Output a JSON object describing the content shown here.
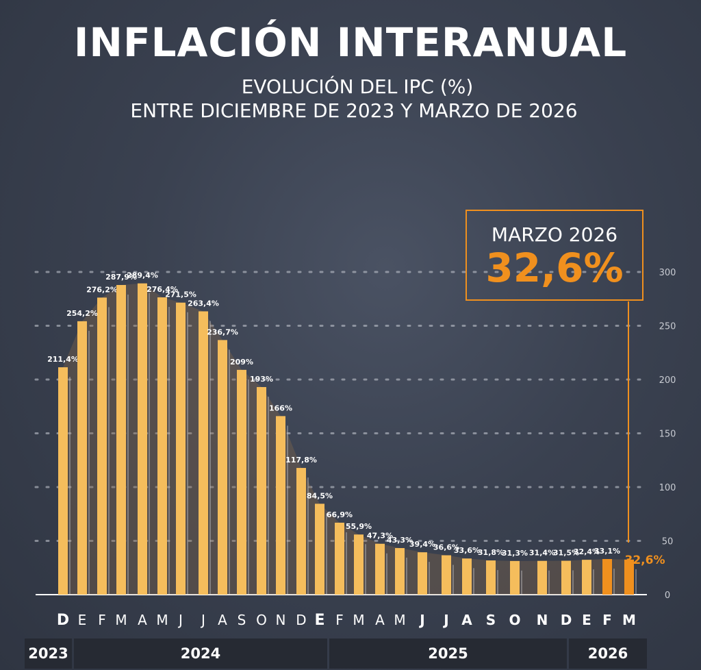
{
  "chart_data": {
    "type": "bar",
    "title": "INFLACIÓN INTERANUAL",
    "subtitle": [
      "EVOLUCIÓN DEL IPC (%)",
      "ENTRE DICIEMBRE DE 2023 Y MARZO DE 2026"
    ],
    "categories": [
      "D",
      "E",
      "F",
      "M",
      "A",
      "M",
      "J",
      "J",
      "A",
      "S",
      "O",
      "N",
      "D",
      "E",
      "F",
      "M",
      "A",
      "M",
      "J",
      "J",
      "A",
      "S",
      "O",
      "N",
      "D",
      "E",
      "F",
      "M"
    ],
    "values": [
      211.4,
      254.2,
      276.2,
      287.9,
      289.4,
      276.4,
      271.5,
      263.4,
      236.7,
      209,
      193,
      166,
      117.8,
      84.5,
      66.9,
      55.9,
      47.3,
      43.3,
      39.4,
      36.6,
      33.6,
      31.8,
      31.3,
      31.4,
      31.5,
      32.4,
      33.1,
      32.6
    ],
    "labels": [
      "211,4%",
      "254,2%",
      "276,2%",
      "287,9%",
      "289,4%",
      "276,4%",
      "271,5%",
      "263,4%",
      "236,7%",
      "209%",
      "193%",
      "166%",
      "117,8%",
      "84,5%",
      "66,9%",
      "55,9%",
      "47,3%",
      "43,3%",
      "39,4%",
      "36,6%",
      "33,6%",
      "31,8%",
      "31,3%",
      "31,4%",
      "31,5%",
      "32,4%",
      "33,1%",
      "32,6%"
    ],
    "years": [
      {
        "label": "2023",
        "span": 1
      },
      {
        "label": "2024",
        "span": 12
      },
      {
        "label": "2025",
        "span": 12
      },
      {
        "label": "2026",
        "span": 3
      }
    ],
    "yticks": [
      "0",
      "50",
      "100",
      "150",
      "200",
      "250",
      "300"
    ],
    "ylim": [
      0,
      300
    ],
    "grid": true,
    "highlight_color": "#f0901e",
    "bar_color": "#f5bd5c",
    "callout": {
      "month": "MARZO 2026",
      "value": "32,6%"
    }
  }
}
